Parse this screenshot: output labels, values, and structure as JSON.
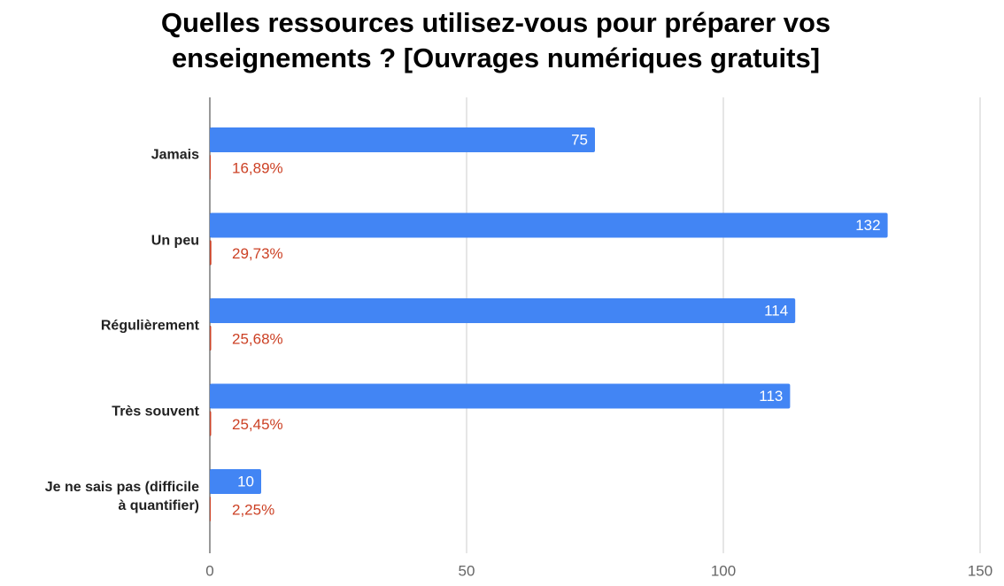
{
  "chart_data": {
    "type": "bar",
    "orientation": "horizontal",
    "title": "Quelles ressources utilisez-vous pour préparer vos enseignements ? [Ouvrages numériques gratuits]",
    "categories": [
      "Jamais",
      "Un peu",
      "Régulièrement",
      "Très souvent",
      "Je ne sais pas (difficile à quantifier)"
    ],
    "series": [
      {
        "color": "#4285f4",
        "values": [
          75,
          132,
          114,
          113,
          10
        ]
      },
      {
        "color": "#cc4125",
        "values": [
          0.1689,
          0.2973,
          0.2568,
          0.2545,
          0.0225
        ],
        "value_labels": [
          "16,89%",
          "29,73%",
          "25,68%",
          "25,45%",
          "2,25%"
        ]
      }
    ],
    "xlim": [
      0,
      150
    ],
    "xticks": [
      0,
      50,
      100,
      150
    ],
    "grid": true
  }
}
